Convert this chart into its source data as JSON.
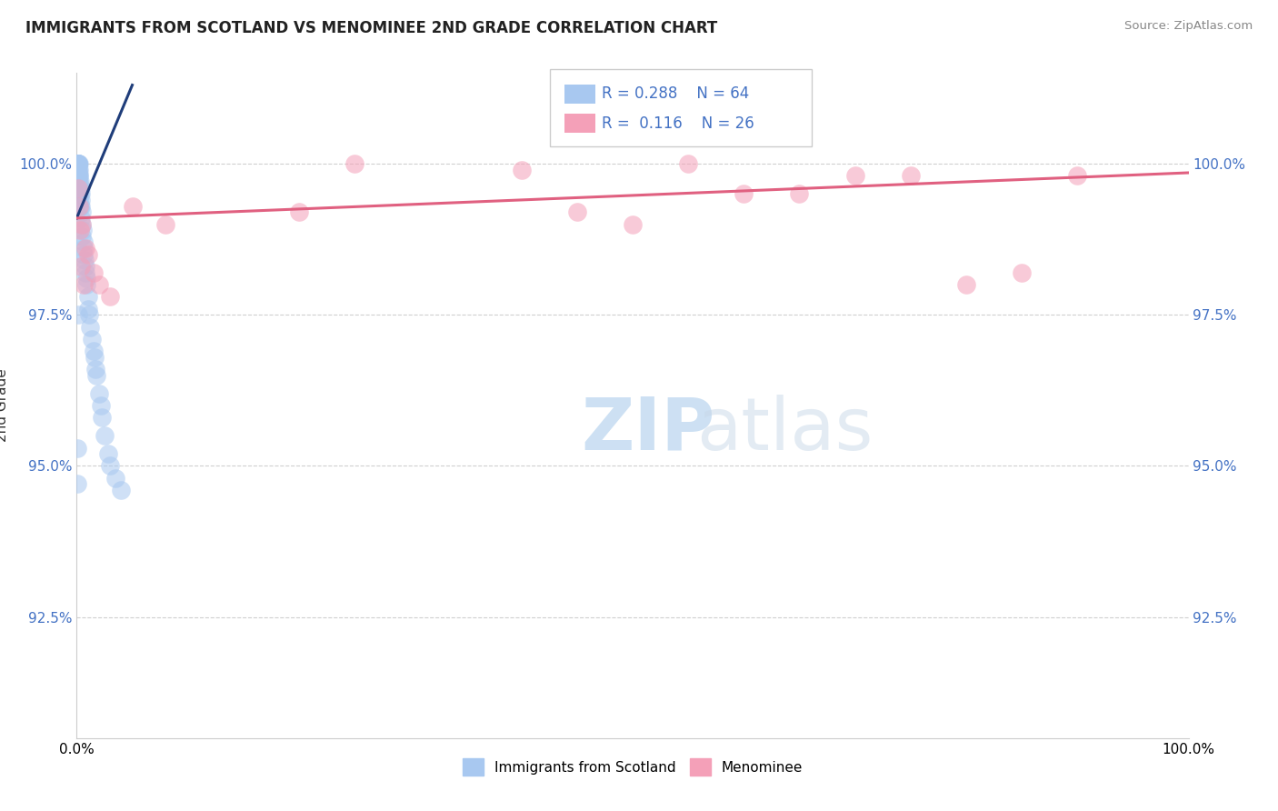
{
  "title": "IMMIGRANTS FROM SCOTLAND VS MENOMINEE 2ND GRADE CORRELATION CHART",
  "source": "Source: ZipAtlas.com",
  "ylabel": "2nd Grade",
  "xlim": [
    0.0,
    100.0
  ],
  "ylim": [
    90.5,
    101.5
  ],
  "yticks": [
    92.5,
    95.0,
    97.5,
    100.0
  ],
  "ytick_labels": [
    "92.5%",
    "95.0%",
    "97.5%",
    "100.0%"
  ],
  "blue_color": "#a8c8f0",
  "pink_color": "#f4a0b8",
  "blue_line_color": "#1f3d7a",
  "pink_line_color": "#e06080",
  "watermark_zip": "ZIP",
  "watermark_atlas": "atlas",
  "blue_scatter_x": [
    0.05,
    0.05,
    0.05,
    0.05,
    0.05,
    0.1,
    0.1,
    0.1,
    0.1,
    0.1,
    0.1,
    0.1,
    0.15,
    0.15,
    0.15,
    0.15,
    0.2,
    0.2,
    0.2,
    0.2,
    0.2,
    0.25,
    0.25,
    0.25,
    0.3,
    0.3,
    0.3,
    0.35,
    0.35,
    0.4,
    0.4,
    0.4,
    0.45,
    0.5,
    0.5,
    0.55,
    0.6,
    0.6,
    0.65,
    0.7,
    0.75,
    0.8,
    0.85,
    0.9,
    1.0,
    1.0,
    1.1,
    1.2,
    1.4,
    1.5,
    1.6,
    1.7,
    1.8,
    2.0,
    2.2,
    2.3,
    2.5,
    2.8,
    3.0,
    3.5,
    4.0,
    0.15,
    0.08,
    0.08
  ],
  "blue_scatter_y": [
    100.0,
    100.0,
    100.0,
    100.0,
    99.9,
    100.0,
    100.0,
    100.0,
    100.0,
    99.9,
    99.8,
    99.7,
    100.0,
    99.9,
    99.8,
    99.6,
    100.0,
    99.9,
    99.8,
    99.7,
    99.5,
    99.8,
    99.6,
    99.4,
    99.7,
    99.5,
    99.3,
    99.6,
    99.4,
    99.5,
    99.3,
    99.1,
    99.2,
    99.0,
    98.8,
    98.9,
    98.7,
    98.5,
    98.6,
    98.4,
    98.3,
    98.2,
    98.1,
    98.0,
    97.8,
    97.6,
    97.5,
    97.3,
    97.1,
    96.9,
    96.8,
    96.6,
    96.5,
    96.2,
    96.0,
    95.8,
    95.5,
    95.2,
    95.0,
    94.8,
    94.6,
    97.5,
    95.3,
    94.7
  ],
  "pink_scatter_x": [
    0.1,
    0.2,
    0.3,
    0.5,
    0.8,
    1.0,
    1.5,
    2.0,
    3.0,
    5.0,
    8.0,
    20.0,
    25.0,
    40.0,
    45.0,
    50.0,
    55.0,
    60.0,
    65.0,
    70.0,
    75.0,
    80.0,
    85.0,
    90.0,
    0.4,
    0.6
  ],
  "pink_scatter_y": [
    99.6,
    99.3,
    98.9,
    99.0,
    98.6,
    98.5,
    98.2,
    98.0,
    97.8,
    99.3,
    99.0,
    99.2,
    100.0,
    99.9,
    99.2,
    99.0,
    100.0,
    99.5,
    99.5,
    99.8,
    99.8,
    98.0,
    98.2,
    99.8,
    98.3,
    98.0
  ],
  "blue_trendline_x": [
    0.0,
    5.0
  ],
  "blue_trendline_y": [
    99.1,
    101.3
  ],
  "pink_trendline_x": [
    0.0,
    100.0
  ],
  "pink_trendline_y": [
    99.1,
    99.85
  ],
  "grid_color": "#d0d0d0",
  "background_color": "#ffffff",
  "legend_text_color": "#4472c4"
}
